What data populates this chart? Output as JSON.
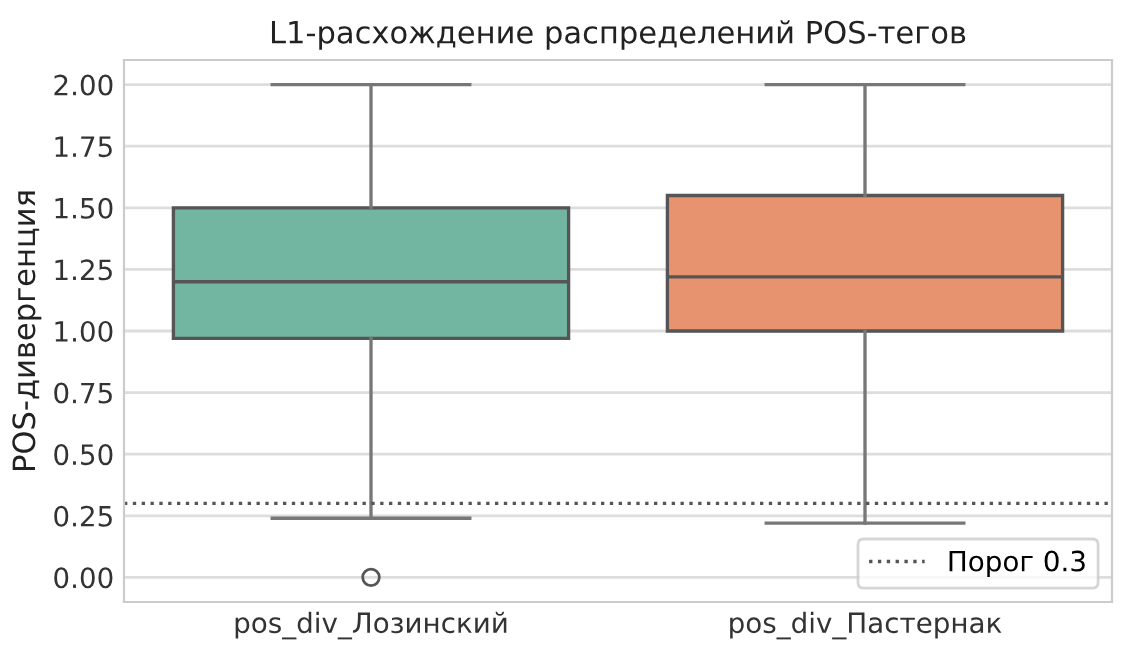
{
  "chart_data": {
    "type": "box",
    "title": "L1-расхождение распределений POS-тегов",
    "ylabel": "POS-дивергенция",
    "categories": [
      "pos_div_Лозинский",
      "pos_div_Пастернак"
    ],
    "colors": [
      "#72b6a1",
      "#e8936f"
    ],
    "boxes": [
      {
        "low": 0.24,
        "q1": 0.97,
        "median": 1.2,
        "q3": 1.5,
        "high": 2.0,
        "outliers": [
          0.0
        ]
      },
      {
        "low": 0.22,
        "q1": 1.0,
        "median": 1.22,
        "q3": 1.55,
        "high": 2.0
      }
    ],
    "ylim": [
      -0.1,
      2.1
    ],
    "yticks": [
      {
        "value": 0,
        "label": "0.00"
      },
      {
        "value": 0.25,
        "label": "0.25"
      },
      {
        "value": 0.5,
        "label": "0.50"
      },
      {
        "value": 0.75,
        "label": "0.75"
      },
      {
        "value": 1,
        "label": "1.00"
      },
      {
        "value": 1.25,
        "label": "1.25"
      },
      {
        "value": 1.5,
        "label": "1.50"
      },
      {
        "value": 1.75,
        "label": "1.75"
      },
      {
        "value": 2,
        "label": "2.00"
      }
    ],
    "ref_lines": [
      {
        "axis": "y",
        "value": 0.3,
        "label": "Порог 0.3",
        "color": "#555555",
        "line_style": "dotted"
      }
    ],
    "grid": "y",
    "legend": "lower right"
  }
}
